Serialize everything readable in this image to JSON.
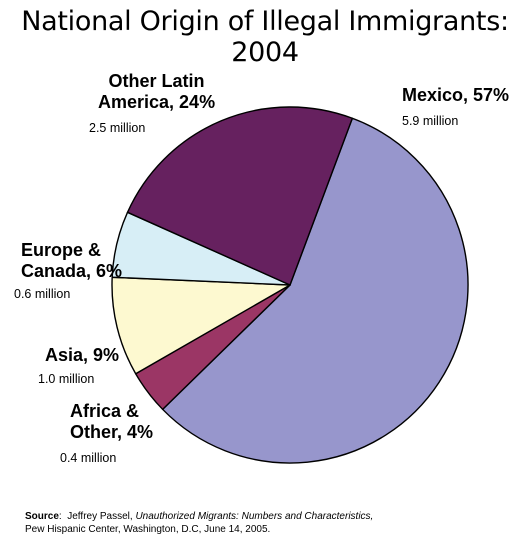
{
  "title": "National Origin of Illegal Immigrants: 2004",
  "chart_data": {
    "type": "pie",
    "title": "National Origin of Illegal Immigrants: 2004",
    "slices": [
      {
        "label": "Mexico, 57%",
        "label_lines": [
          "Mexico, 57%"
        ],
        "percent": 57,
        "amount": "5.9 million",
        "color": "#9796cc"
      },
      {
        "label": "Africa & Other, 4%",
        "label_lines": [
          "Africa &",
          "Other, 4%"
        ],
        "percent": 4,
        "amount": "0.4 million",
        "color": "#9b3665"
      },
      {
        "label": "Asia, 9%",
        "label_lines": [
          "Asia, 9%"
        ],
        "percent": 9,
        "amount": "1.0 million",
        "color": "#fdf9d0"
      },
      {
        "label": "Europe & Canada, 6%",
        "label_lines": [
          "Europe &",
          "Canada, 6%"
        ],
        "percent": 6,
        "amount": "0.6 million",
        "color": "#d7eef6"
      },
      {
        "label": "Other Latin America, 24%",
        "label_lines": [
          "Other Latin",
          "America, 24%"
        ],
        "percent": 24,
        "amount": "2.5 million",
        "color": "#66215f"
      }
    ]
  },
  "source": {
    "label": "Source",
    "author": "Jeffrey Passel,",
    "work": "Unauthorized Migrants: Numbers and Characteristics,",
    "line2": "Pew Hispanic Center, Washington, D.C, June 14, 2005."
  }
}
